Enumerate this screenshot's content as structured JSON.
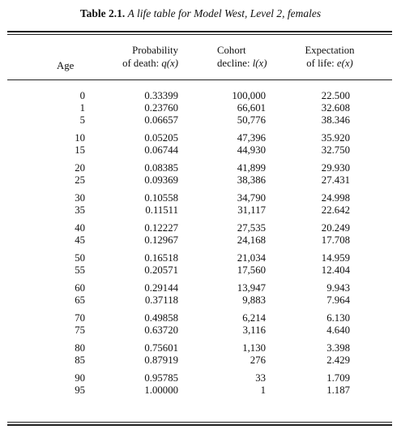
{
  "caption": {
    "number": "Table 2.1.",
    "title": "A life table for Model West, Level 2, females"
  },
  "headers": {
    "age": "Age",
    "q": {
      "line1": "Probability",
      "line2": "of death: ",
      "symbol": "q(x)"
    },
    "l": {
      "line1": "Cohort",
      "line2": "decline: ",
      "symbol": "l(x)"
    },
    "e": {
      "line1": "Expectation",
      "line2": "of life: ",
      "symbol": "e(x)"
    }
  },
  "rows": [
    {
      "age": "0",
      "q": "0.33399",
      "l": "100,000",
      "e": "22.500"
    },
    {
      "age": "1",
      "q": "0.23760",
      "l": "66,601",
      "e": "32.608"
    },
    {
      "age": "5",
      "q": "0.06657",
      "l": "50,776",
      "e": "38.346"
    },
    {
      "age": "10",
      "q": "0.05205",
      "l": "47,396",
      "e": "35.920"
    },
    {
      "age": "15",
      "q": "0.06744",
      "l": "44,930",
      "e": "32.750"
    },
    {
      "age": "20",
      "q": "0.08385",
      "l": "41,899",
      "e": "29.930"
    },
    {
      "age": "25",
      "q": "0.09369",
      "l": "38,386",
      "e": "27.431"
    },
    {
      "age": "30",
      "q": "0.10558",
      "l": "34,790",
      "e": "24.998"
    },
    {
      "age": "35",
      "q": "0.11511",
      "l": "31,117",
      "e": "22.642"
    },
    {
      "age": "40",
      "q": "0.12227",
      "l": "27,535",
      "e": "20.249"
    },
    {
      "age": "45",
      "q": "0.12967",
      "l": "24,168",
      "e": "17.708"
    },
    {
      "age": "50",
      "q": "0.16518",
      "l": "21,034",
      "e": "14.959"
    },
    {
      "age": "55",
      "q": "0.20571",
      "l": "17,560",
      "e": "12.404"
    },
    {
      "age": "60",
      "q": "0.29144",
      "l": "13,947",
      "e": "9.943"
    },
    {
      "age": "65",
      "q": "0.37118",
      "l": "9,883",
      "e": "7.964"
    },
    {
      "age": "70",
      "q": "0.49858",
      "l": "6,214",
      "e": "6.130"
    },
    {
      "age": "75",
      "q": "0.63720",
      "l": "3,116",
      "e": "4.640"
    },
    {
      "age": "80",
      "q": "0.75601",
      "l": "1,130",
      "e": "3.398"
    },
    {
      "age": "85",
      "q": "0.87919",
      "l": "276",
      "e": "2.429"
    },
    {
      "age": "90",
      "q": "0.95785",
      "l": "33",
      "e": "1.709"
    },
    {
      "age": "95",
      "q": "1.00000",
      "l": "1",
      "e": "1.187"
    }
  ]
}
